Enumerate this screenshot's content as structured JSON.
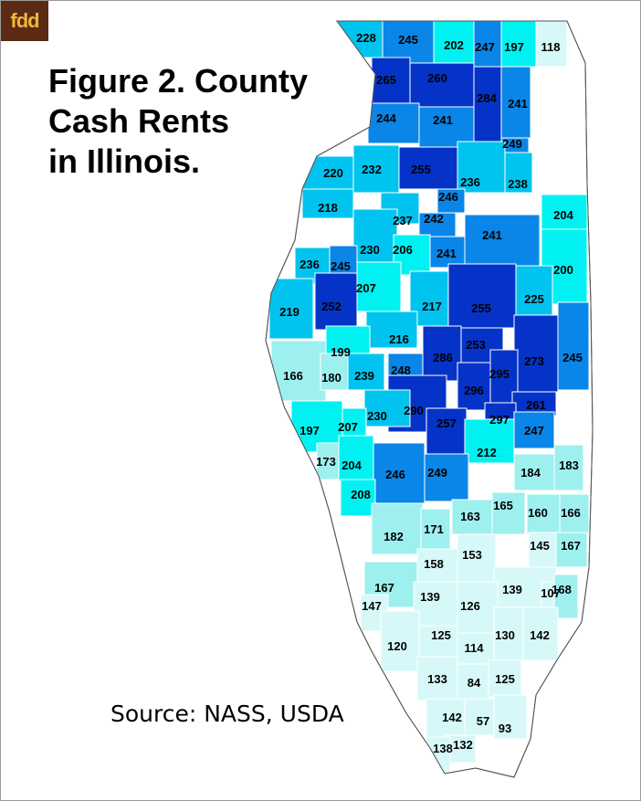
{
  "logo": "fdd",
  "title": {
    "line1": "Figure 2.  County",
    "line2": "Cash Rents",
    "line3": "in Illinois."
  },
  "source": "Source:  NASS, USDA",
  "colors": {
    "border": "#ffffff",
    "outline": "#555555",
    "background": "#ffffff",
    "logo_bg": "#5a2a15",
    "logo_text": "#f0b73a"
  },
  "color_scale": [
    {
      "min": 0,
      "color": "#d7f8f8"
    },
    {
      "min": 160,
      "color": "#9ef0ef"
    },
    {
      "min": 195,
      "color": "#00f1f1"
    },
    {
      "min": 215,
      "color": "#00c4ef"
    },
    {
      "min": 240,
      "color": "#0a86e8"
    },
    {
      "min": 252,
      "color": "#0533c8"
    }
  ],
  "counties": [
    {
      "id": "jo-daviess",
      "label": "228"
    },
    {
      "id": "stephenson",
      "label": "245"
    },
    {
      "id": "winnebago",
      "label": "202"
    },
    {
      "id": "boone",
      "label": "247"
    },
    {
      "id": "mchenry",
      "label": "197"
    },
    {
      "id": "lake",
      "label": "118"
    },
    {
      "id": "carroll",
      "label": "265"
    },
    {
      "id": "ogle",
      "label": "260"
    },
    {
      "id": "dekalb",
      "label": "284"
    },
    {
      "id": "kane",
      "label": "241"
    },
    {
      "id": "whiteside",
      "label": "244"
    },
    {
      "id": "lee",
      "label": "241"
    },
    {
      "id": "kendall",
      "label": "249"
    },
    {
      "id": "rock-island",
      "label": "220"
    },
    {
      "id": "henry",
      "label": "232"
    },
    {
      "id": "bureau",
      "label": "255"
    },
    {
      "id": "lasalle",
      "label": "236"
    },
    {
      "id": "grundy",
      "label": "238"
    },
    {
      "id": "putnam",
      "label": "246"
    },
    {
      "id": "mercer",
      "label": "218"
    },
    {
      "id": "stark",
      "label": "237"
    },
    {
      "id": "marshall",
      "label": "242"
    },
    {
      "id": "kankakee",
      "label": "204"
    },
    {
      "id": "knox",
      "label": "230"
    },
    {
      "id": "peoria",
      "label": "206"
    },
    {
      "id": "woodford",
      "label": "241"
    },
    {
      "id": "livingston",
      "label": "241"
    },
    {
      "id": "henderson",
      "label": "236"
    },
    {
      "id": "warren",
      "label": "245"
    },
    {
      "id": "iroquois",
      "label": "200"
    },
    {
      "id": "fulton",
      "label": "207"
    },
    {
      "id": "mcdonough",
      "label": "252"
    },
    {
      "id": "tazewell",
      "label": "217"
    },
    {
      "id": "mclean",
      "label": "255"
    },
    {
      "id": "ford",
      "label": "225"
    },
    {
      "id": "hancock",
      "label": "219"
    },
    {
      "id": "mason",
      "label": "216"
    },
    {
      "id": "schuyler",
      "label": "199"
    },
    {
      "id": "logan",
      "label": "286"
    },
    {
      "id": "dewitt",
      "label": "253"
    },
    {
      "id": "champaign",
      "label": "273"
    },
    {
      "id": "vermilion",
      "label": "245"
    },
    {
      "id": "adams",
      "label": "166"
    },
    {
      "id": "brown",
      "label": "180"
    },
    {
      "id": "cass",
      "label": "239"
    },
    {
      "id": "menard",
      "label": "248"
    },
    {
      "id": "macon",
      "label": "296"
    },
    {
      "id": "piatt",
      "label": "295"
    },
    {
      "id": "sangamon",
      "label": "290"
    },
    {
      "id": "douglas",
      "label": "261"
    },
    {
      "id": "morgan",
      "label": "230"
    },
    {
      "id": "scott",
      "label": "207"
    },
    {
      "id": "pike",
      "label": "197"
    },
    {
      "id": "christian",
      "label": "257"
    },
    {
      "id": "moultrie",
      "label": "297"
    },
    {
      "id": "edgar",
      "label": "247"
    },
    {
      "id": "shelby",
      "label": "212"
    },
    {
      "id": "calhoun",
      "label": "173"
    },
    {
      "id": "greene",
      "label": "204"
    },
    {
      "id": "macoupin",
      "label": "246"
    },
    {
      "id": "montgomery",
      "label": "249"
    },
    {
      "id": "cumberland",
      "label": "184"
    },
    {
      "id": "clark",
      "label": "183"
    },
    {
      "id": "jersey",
      "label": "208"
    },
    {
      "id": "effingham",
      "label": "163"
    },
    {
      "id": "jasper",
      "label": "165"
    },
    {
      "id": "crawford",
      "label": "160"
    },
    {
      "id": "lawrence-n",
      "label": "166"
    },
    {
      "id": "madison",
      "label": "182"
    },
    {
      "id": "bond",
      "label": "171"
    },
    {
      "id": "richland",
      "label": "145"
    },
    {
      "id": "lawrence",
      "label": "167"
    },
    {
      "id": "clinton",
      "label": "158"
    },
    {
      "id": "marion",
      "label": "153"
    },
    {
      "id": "st-clair",
      "label": "167"
    },
    {
      "id": "wayne",
      "label": "139"
    },
    {
      "id": "edwards",
      "label": "107"
    },
    {
      "id": "wabash",
      "label": "168"
    },
    {
      "id": "monroe",
      "label": "147"
    },
    {
      "id": "washington",
      "label": "139"
    },
    {
      "id": "jefferson",
      "label": "126"
    },
    {
      "id": "perry",
      "label": "125"
    },
    {
      "id": "hamilton",
      "label": "130"
    },
    {
      "id": "white",
      "label": "142"
    },
    {
      "id": "randolph",
      "label": "120"
    },
    {
      "id": "franklin",
      "label": "114"
    },
    {
      "id": "jackson",
      "label": "133"
    },
    {
      "id": "williamson",
      "label": "84"
    },
    {
      "id": "saline",
      "label": "125"
    },
    {
      "id": "union",
      "label": "142"
    },
    {
      "id": "johnson",
      "label": "57"
    },
    {
      "id": "pope",
      "label": "93"
    },
    {
      "id": "pulaski",
      "label": "132"
    },
    {
      "id": "alexander",
      "label": "138"
    }
  ]
}
